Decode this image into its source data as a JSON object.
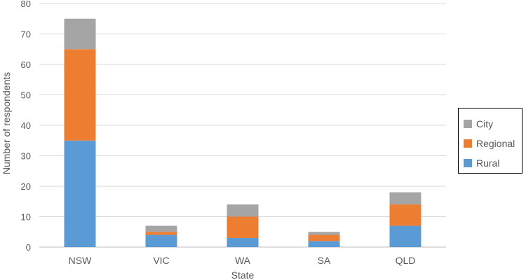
{
  "chart_data": {
    "type": "bar",
    "stacked": true,
    "categories": [
      "NSW",
      "VIC",
      "WA",
      "SA",
      "QLD"
    ],
    "series": [
      {
        "name": "Rural",
        "color": "#5b9bd5",
        "values": [
          35,
          4,
          3,
          2,
          7
        ]
      },
      {
        "name": "Regional",
        "color": "#ed7d31",
        "values": [
          30,
          1,
          7,
          2,
          7
        ]
      },
      {
        "name": "City",
        "color": "#a5a5a5",
        "values": [
          10,
          2,
          4,
          1,
          4
        ]
      }
    ],
    "title": "",
    "xlabel": "State",
    "ylabel": "Number of respondents",
    "ylim": [
      0,
      80
    ],
    "yticks": [
      0,
      10,
      20,
      30,
      40,
      50,
      60,
      70,
      80
    ],
    "grid": true,
    "legend": {
      "position": "right",
      "items": [
        {
          "label": "City",
          "color": "#a5a5a5"
        },
        {
          "label": "Regional",
          "color": "#ed7d31"
        },
        {
          "label": "Rural",
          "color": "#5b9bd5"
        }
      ]
    }
  }
}
